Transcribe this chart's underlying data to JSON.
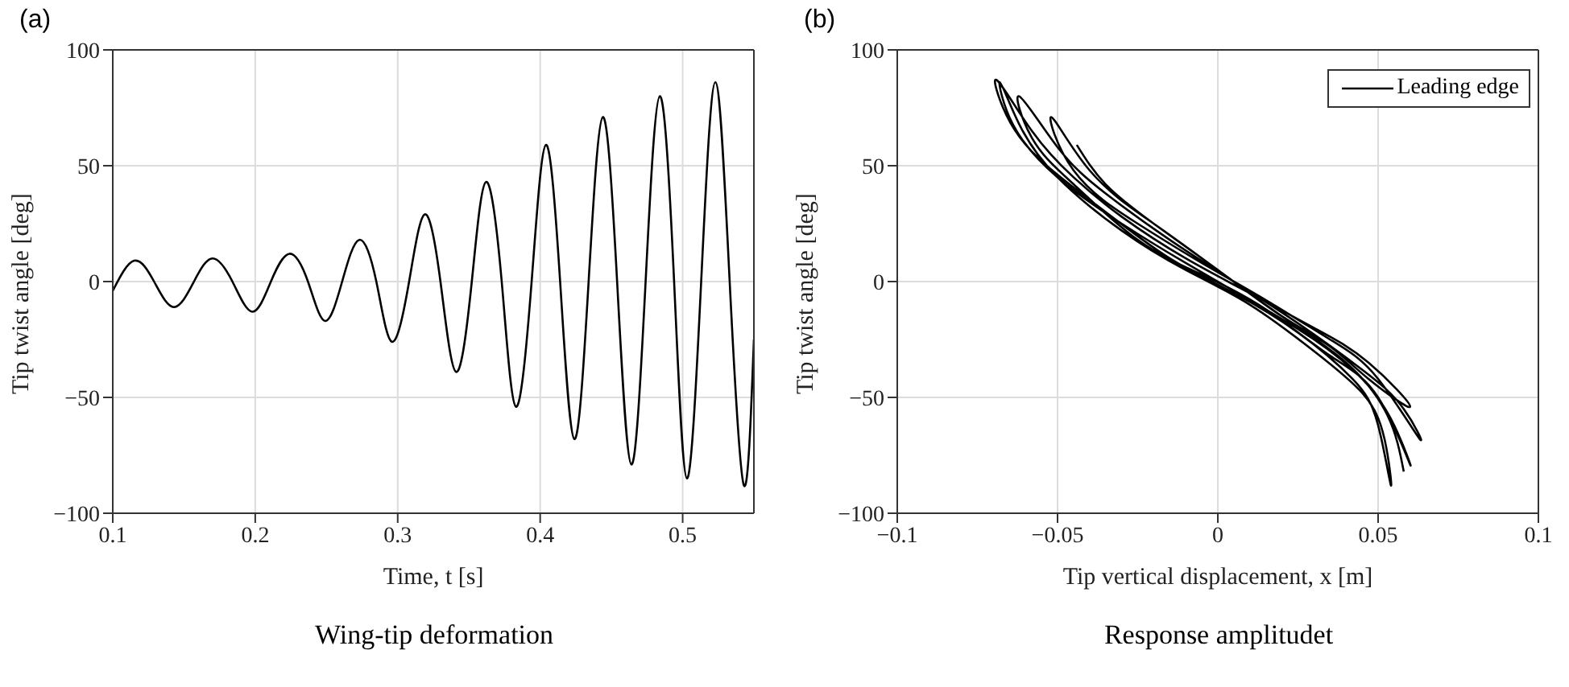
{
  "chart_data": [
    {
      "type": "line",
      "title": "Wing-tip deformation",
      "annotations": [
        "(a)"
      ],
      "xlabel": "Time, t [s]",
      "ylabel": "Tip twist angle [deg]",
      "xlim": [
        0.1,
        0.55
      ],
      "xticks": [
        0.1,
        0.2,
        0.3,
        0.4,
        0.5
      ],
      "ylim": [
        -100,
        100
      ],
      "yticks": [
        -100,
        -50,
        0,
        50,
        100
      ],
      "grid": true,
      "marker": "none",
      "line_style": "solid",
      "series": [
        {
          "color": "#000000",
          "x": [
            0.1,
            0.115,
            0.129,
            0.143,
            0.157,
            0.17,
            0.184,
            0.198,
            0.211,
            0.224,
            0.237,
            0.249,
            0.261,
            0.273,
            0.285,
            0.296,
            0.308,
            0.319,
            0.33,
            0.341,
            0.352,
            0.362,
            0.373,
            0.383,
            0.394,
            0.404,
            0.414,
            0.424,
            0.434,
            0.444,
            0.454,
            0.464,
            0.474,
            0.484,
            0.494,
            0.503,
            0.513,
            0.523,
            0.533,
            0.543,
            0.55
          ],
          "values": [
            -4,
            9,
            0,
            -11,
            0,
            10,
            0,
            -13,
            0,
            12,
            0,
            -17,
            0,
            18,
            0,
            -26,
            0,
            29,
            0,
            -39,
            0,
            43,
            0,
            -54,
            0,
            59,
            0,
            -68,
            0,
            71,
            0,
            -79,
            0,
            80,
            0,
            -85,
            0,
            86,
            0,
            -88,
            -25
          ]
        }
      ]
    },
    {
      "type": "line",
      "title": "Response amplitudet",
      "annotations": [
        "(b)"
      ],
      "xlabel": "Tip vertical displacement, x [m]",
      "ylabel": "Tip twist angle [deg]",
      "xlim": [
        -0.1,
        0.1
      ],
      "xticks": [
        -0.1,
        -0.05,
        0,
        0.05,
        0.1
      ],
      "ylim": [
        -100,
        100
      ],
      "yticks": [
        -100,
        -50,
        0,
        50,
        100
      ],
      "grid": true,
      "legend": "top right",
      "marker": "none",
      "line_style": "solid",
      "series": [
        {
          "name": "Leading edge",
          "color": "#000000",
          "x": [
            -0.044,
            -0.035,
            -0.02,
            0,
            0.02,
            0.035,
            0.047,
            0.06,
            0.047,
            0.03,
            0.01,
            -0.01,
            -0.03,
            -0.045,
            -0.058,
            -0.069,
            -0.066,
            -0.055,
            -0.035,
            -0.015,
            0.005,
            0.025,
            0.042,
            0.05,
            0.054,
            0.052,
            0.045,
            0.03,
            0.01,
            -0.01,
            -0.03,
            -0.05,
            -0.062,
            -0.068,
            -0.064,
            -0.05,
            -0.03,
            -0.01,
            0.01,
            0.03,
            0.045,
            0.055,
            0.06,
            0.05,
            0.035,
            0.015,
            -0.005,
            -0.025,
            -0.045,
            -0.058,
            -0.062,
            -0.05,
            -0.035,
            -0.015,
            0.005,
            0.025,
            0.045,
            0.058,
            0.063,
            0.05,
            0.035,
            0.015,
            -0.005,
            -0.025,
            -0.045,
            -0.052,
            -0.04,
            -0.02,
            0,
            0.02,
            0.04,
            0.053,
            0.058
          ],
          "values": [
            59,
            42,
            25,
            5,
            -15,
            -28,
            -42,
            -54,
            -35,
            -20,
            -5,
            10,
            28,
            45,
            65,
            87,
            72,
            52,
            30,
            10,
            -5,
            -22,
            -42,
            -62,
            -88,
            -68,
            -48,
            -30,
            -10,
            5,
            22,
            45,
            68,
            86,
            68,
            45,
            25,
            8,
            -8,
            -25,
            -42,
            -62,
            -79,
            -50,
            -32,
            -12,
            3,
            18,
            42,
            62,
            80,
            58,
            38,
            18,
            0,
            -18,
            -38,
            -55,
            -68,
            -42,
            -25,
            -8,
            8,
            25,
            48,
            71,
            48,
            25,
            5,
            -15,
            -35,
            -58,
            -82
          ]
        }
      ]
    }
  ]
}
